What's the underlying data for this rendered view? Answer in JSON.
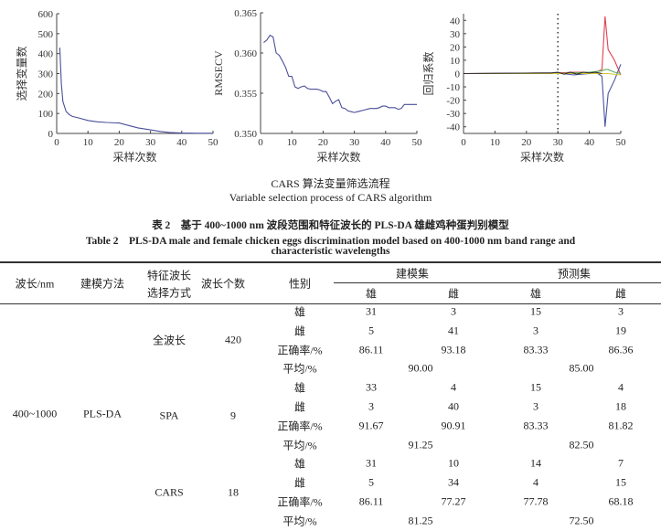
{
  "figure": {
    "caption_cn": "CARS 算法变量筛选流程",
    "caption_en": "Variable selection process of CARS algorithm"
  },
  "chart_data": [
    {
      "type": "line",
      "xlabel": "采样次数",
      "ylabel": "选择变量数",
      "xlim": [
        0,
        50
      ],
      "ylim": [
        0,
        600
      ],
      "xticks": [
        "0",
        "10",
        "20",
        "30",
        "40",
        "50"
      ],
      "yticks": [
        "0",
        "100",
        "200",
        "300",
        "400",
        "500",
        "600"
      ],
      "color": "#4a4f9a",
      "x": [
        1,
        1.5,
        2,
        3,
        4,
        5,
        7,
        10,
        13,
        16,
        20,
        23,
        26,
        30,
        33,
        36,
        40,
        45,
        50
      ],
      "y": [
        430,
        250,
        160,
        110,
        95,
        85,
        78,
        65,
        58,
        55,
        52,
        40,
        28,
        18,
        10,
        5,
        2,
        1,
        1
      ]
    },
    {
      "type": "line",
      "xlabel": "采样次数",
      "ylabel": "RMSECV",
      "xlim": [
        0,
        50
      ],
      "ylim": [
        0.35,
        0.365
      ],
      "xticks": [
        "0",
        "10",
        "20",
        "30",
        "40",
        "50"
      ],
      "yticks": [
        "0.350",
        "0.355",
        "0.360",
        "0.365"
      ],
      "color": "#4a4f9a",
      "x": [
        1,
        2,
        3,
        4,
        5,
        6,
        7,
        8,
        9,
        10,
        11,
        12,
        13,
        14,
        15,
        16,
        18,
        19,
        20,
        21,
        22,
        23,
        24,
        25,
        26,
        27,
        28,
        29,
        30,
        31,
        33,
        35,
        37,
        38,
        39,
        40,
        41,
        43,
        44,
        45,
        46,
        48,
        50
      ],
      "y": [
        0.3613,
        0.3616,
        0.3622,
        0.362,
        0.36,
        0.3597,
        0.359,
        0.3582,
        0.3571,
        0.3571,
        0.3558,
        0.3556,
        0.3558,
        0.3559,
        0.3556,
        0.3555,
        0.3555,
        0.3554,
        0.3552,
        0.3552,
        0.3545,
        0.3537,
        0.354,
        0.3542,
        0.3532,
        0.3531,
        0.3528,
        0.3527,
        0.3526,
        0.3527,
        0.3529,
        0.3531,
        0.3531,
        0.3532,
        0.3534,
        0.3534,
        0.3532,
        0.3532,
        0.353,
        0.3531,
        0.3536,
        0.3536,
        0.3536
      ]
    },
    {
      "type": "line",
      "xlabel": "采样次数",
      "ylabel": "回归系数",
      "xlim": [
        0,
        50
      ],
      "ylim": [
        -45,
        45
      ],
      "xticks": [
        "0",
        "10",
        "20",
        "30",
        "40",
        "50"
      ],
      "yticks": [
        "-40",
        "-30",
        "-20",
        "-10",
        "0",
        "10",
        "20",
        "30",
        "40"
      ],
      "vline": 30,
      "series": [
        {
          "color": "#e04050",
          "x": [
            0,
            30,
            35,
            40,
            42,
            44,
            45,
            46,
            48,
            50
          ],
          "y": [
            0,
            0.5,
            1,
            1,
            1,
            3,
            43,
            18,
            10,
            -1
          ]
        },
        {
          "color": "#4a55a0",
          "x": [
            0,
            30,
            35,
            40,
            42,
            44,
            45,
            46,
            48,
            50
          ],
          "y": [
            0,
            0.5,
            -1,
            0,
            1,
            -2,
            -40,
            -15,
            -5,
            7
          ]
        },
        {
          "color": "#5cb060",
          "x": [
            0,
            30,
            35,
            40,
            44,
            45,
            46,
            48,
            50
          ],
          "y": [
            0,
            0,
            0.5,
            1,
            2,
            3,
            3,
            1,
            0
          ]
        },
        {
          "color": "#d4c832",
          "x": [
            0,
            30,
            40,
            44,
            46,
            50
          ],
          "y": [
            0,
            0,
            0,
            0,
            0,
            -1
          ]
        },
        {
          "color": "#303030",
          "x": [
            0,
            28,
            30,
            32,
            34,
            36,
            38,
            40,
            42,
            44
          ],
          "y": [
            0,
            0.5,
            1,
            -0.5,
            1,
            -0.5,
            1,
            0.5,
            1,
            0
          ]
        }
      ]
    }
  ],
  "table": {
    "title_cn": "表 2　基于 400~1000 nm 波段范围和特征波长的 PLS-DA 雄雌鸡种蛋判别模型",
    "title_en_1": "Table 2　PLS-DA male and female chicken eggs discrimination model based on 400-1000 nm band range and",
    "title_en_2": "characteristic wavelengths",
    "headers": {
      "wavelength": "波长/nm",
      "method": "建模方法",
      "selection_1": "特征波长",
      "selection_2": "选择方式",
      "count": "波长个数",
      "sex": "性别",
      "calibration": "建模集",
      "prediction": "预测集",
      "sub": [
        "雄",
        "雌",
        "雄",
        "雌"
      ]
    },
    "wavelength": "400~1000",
    "method": "PLS-DA",
    "groups": [
      {
        "selection": "全波长",
        "count": "420",
        "rows": [
          [
            "雄",
            "31",
            "3",
            "15",
            "3"
          ],
          [
            "雌",
            "5",
            "41",
            "3",
            "19"
          ],
          [
            "正确率/%",
            "86.11",
            "93.18",
            "83.33",
            "86.36"
          ]
        ],
        "avg_label": "平均/%",
        "avg_cal": "90.00",
        "avg_pred": "85.00"
      },
      {
        "selection": "SPA",
        "count": "9",
        "rows": [
          [
            "雄",
            "33",
            "4",
            "15",
            "4"
          ],
          [
            "雌",
            "3",
            "40",
            "3",
            "18"
          ],
          [
            "正确率/%",
            "91.67",
            "90.91",
            "83.33",
            "81.82"
          ]
        ],
        "avg_label": "平均/%",
        "avg_cal": "91.25",
        "avg_pred": "82.50"
      },
      {
        "selection": "CARS",
        "count": "18",
        "rows": [
          [
            "雄",
            "31",
            "10",
            "14",
            "7"
          ],
          [
            "雌",
            "5",
            "34",
            "4",
            "15"
          ],
          [
            "正确率/%",
            "86.11",
            "77.27",
            "77.78",
            "68.18"
          ]
        ],
        "avg_label": "平均/%",
        "avg_cal": "81.25",
        "avg_pred": "72.50"
      }
    ]
  }
}
